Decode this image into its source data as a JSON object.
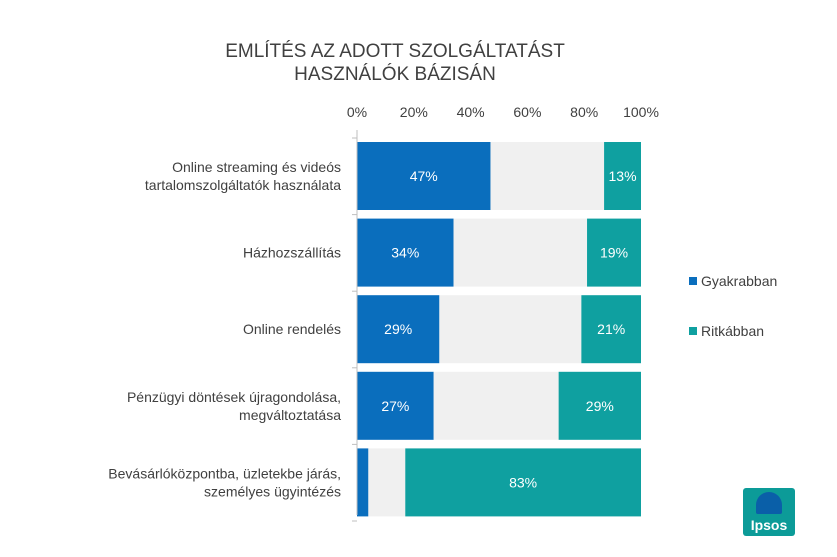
{
  "title_line1": "EMLÍTÉS AZ ADOTT SZOLGÁLTATÁST",
  "title_line2": "HASZNÁLÓK BÁZISÁN",
  "logo_text": "Ipsos",
  "colors": {
    "frequent": "#0a6ebd",
    "rare": "#0fa0a0",
    "remainder": "#f0f0f0",
    "axis": "#bfbfbf",
    "text": "#404040"
  },
  "chart_data": {
    "type": "bar",
    "orientation": "horizontal",
    "stacked": true,
    "title": "EMLÍTÉS AZ ADOTT SZOLGÁLTATÁST HASZNÁLÓK BÁZISÁN",
    "xlim": [
      0,
      100
    ],
    "ticks": [
      "0%",
      "20%",
      "40%",
      "60%",
      "80%",
      "100%"
    ],
    "tick_values": [
      0,
      20,
      40,
      60,
      80,
      100
    ],
    "legend_position": "right",
    "categories": [
      [
        "Online streaming és videós",
        "tartalomszolgáltatók használata"
      ],
      [
        "Házhozszállítás"
      ],
      [
        "Online rendelés"
      ],
      [
        "Pénzügyi döntések újragondolása,",
        "megváltoztatása"
      ],
      [
        "Bevásárlóközpontba, üzletekbe járás,",
        "személyes ügyintézés"
      ]
    ],
    "series": [
      {
        "name": "Gyakrabban",
        "color": "#0a6ebd",
        "values": [
          47,
          34,
          29,
          27,
          4
        ],
        "labels": [
          "47%",
          "34%",
          "29%",
          "27%",
          ""
        ]
      },
      {
        "name": "",
        "color": "#f0f0f0",
        "values": [
          40,
          47,
          50,
          44,
          13
        ],
        "labels": [
          "",
          "",
          "",
          "",
          ""
        ]
      },
      {
        "name": "Ritkábban",
        "color": "#0fa0a0",
        "values": [
          13,
          19,
          21,
          29,
          83
        ],
        "labels": [
          "13%",
          "19%",
          "21%",
          "29%",
          "83%"
        ]
      }
    ],
    "legend": [
      "Gyakrabban",
      "Ritkábban"
    ]
  }
}
